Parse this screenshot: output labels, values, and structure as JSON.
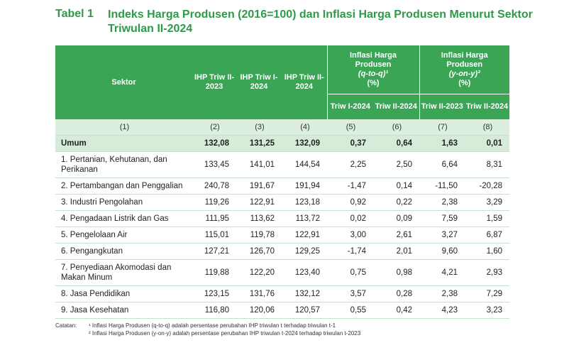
{
  "title": {
    "label": "Tabel 1",
    "text": "Indeks Harga Produsen (2016=100) dan Inflasi Harga Produsen Menurut Sektor Triwulan II-2024"
  },
  "headers": {
    "sektor": "Sektor",
    "ihp1": "IHP Triw II-2023",
    "ihp2": "IHP Triw I-2024",
    "ihp3": "IHP Triw II-2024",
    "qtq_line1": "Inflasi Harga",
    "qtq_line2": "Produsen",
    "qtq_line3": "(q-to-q)¹",
    "qtq_line4": "(%)",
    "yoy_line1": "Inflasi Harga",
    "yoy_line2": "Produsen",
    "yoy_line3": "(y-on-y)²",
    "yoy_line4": "(%)",
    "sub5": "Triw I-2024",
    "sub6": "Triw II-2024",
    "sub7": "Triw II-2023",
    "sub8": "Triw II-2024"
  },
  "col_numbers": [
    "(1)",
    "(2)",
    "(3)",
    "(4)",
    "(5)",
    "(6)",
    "(7)",
    "(8)"
  ],
  "rows": [
    {
      "sector": "Umum",
      "v": [
        "132,08",
        "131,25",
        "132,09",
        "0,37",
        "0,64",
        "1,63",
        "0,01"
      ]
    },
    {
      "sector": "1. Pertanian, Kehutanan, dan Perikanan",
      "v": [
        "133,45",
        "141,01",
        "144,54",
        "2,25",
        "2,50",
        "6,64",
        "8,31"
      ]
    },
    {
      "sector": "2. Pertambangan  dan Penggalian",
      "v": [
        "240,78",
        "191,67",
        "191,94",
        "-1,47",
        "0,14",
        "-11,50",
        "-20,28"
      ]
    },
    {
      "sector": "3. Industri Pengolahan",
      "v": [
        "119,26",
        "122,91",
        "123,18",
        "0,92",
        "0,22",
        "2,38",
        "3,29"
      ]
    },
    {
      "sector": "4. Pengadaan Listrik dan Gas",
      "v": [
        "111,95",
        "113,62",
        "113,72",
        "0,02",
        "0,09",
        "7,59",
        "1,59"
      ]
    },
    {
      "sector": "5. Pengelolaan Air",
      "v": [
        "115,01",
        "119,78",
        "122,91",
        "3,00",
        "2,61",
        "3,27",
        "6,87"
      ]
    },
    {
      "sector": "6. Pengangkutan",
      "v": [
        "127,21",
        "126,70",
        "129,25",
        "-1,74",
        "2,01",
        "9,60",
        "1,60"
      ]
    },
    {
      "sector": "7. Penyediaan Akomodasi dan Makan Minum",
      "v": [
        "119,88",
        "122,20",
        "123,40",
        "0,75",
        "0,98",
        "4,21",
        "2,93"
      ]
    },
    {
      "sector": "8. Jasa Pendidikan",
      "v": [
        "123,15",
        "131,76",
        "132,12",
        "3,57",
        "0,28",
        "2,38",
        "7,29"
      ]
    },
    {
      "sector": "9. Jasa Kesehatan",
      "v": [
        "116,80",
        "120,06",
        "120,57",
        "0,55",
        "0,42",
        "4,23",
        "3,23"
      ]
    }
  ],
  "notes": {
    "label": "Catatan:",
    "note1": "¹ Inflasi Harga Produsen (q-to-q) adalah persentase perubahan IHP triwulan t terhadap triwulan t-1",
    "note2": "² Inflasi Harga Produsen (y-on-y) adalah persentase perubahan IHP triwulan t-2024 terhadap triwulan t-2023"
  }
}
